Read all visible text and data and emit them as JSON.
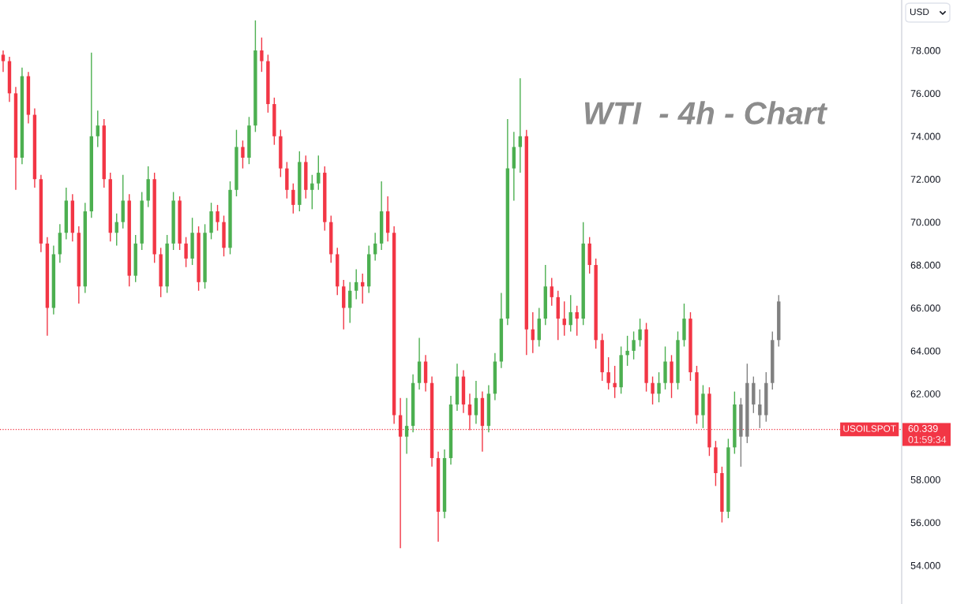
{
  "chart_data": {
    "type": "candlestick",
    "title": "WTI  - 4h - Chart",
    "ylabel": "USD",
    "categories": [
      null,
      null,
      null,
      null,
      null,
      null,
      null,
      null,
      null,
      null,
      null,
      null,
      null,
      null,
      null,
      null,
      null,
      null,
      null,
      null,
      null,
      null,
      null,
      null,
      null,
      null,
      null,
      null,
      null,
      null,
      null,
      null,
      null,
      null,
      null,
      null,
      null,
      null,
      null,
      null,
      null,
      null,
      null,
      null,
      null,
      null,
      null,
      null,
      null,
      null,
      null,
      null,
      null,
      null,
      null,
      null,
      null,
      null,
      null,
      null,
      null,
      null,
      null,
      null,
      null,
      null,
      null,
      null,
      null,
      null,
      null,
      null,
      null,
      null,
      null,
      null,
      null,
      null,
      null,
      null,
      null,
      null,
      null,
      null,
      null,
      null,
      null,
      null,
      null,
      null,
      null,
      null,
      null,
      null,
      null,
      null,
      null,
      null,
      null,
      null,
      null,
      null,
      null,
      null,
      null,
      null,
      null,
      null,
      null,
      null,
      null,
      null,
      null,
      null,
      null,
      null,
      null,
      null,
      null,
      null,
      null,
      null,
      null,
      null,
      null,
      null,
      null,
      null,
      null,
      null,
      null,
      null,
      null,
      null,
      null,
      null,
      null,
      null,
      null,
      null,
      null,
      null,
      null
    ],
    "ohlc": [
      [
        77.8,
        78.0,
        77.0,
        77.5
      ],
      [
        77.5,
        77.7,
        75.6,
        76.0
      ],
      [
        76.0,
        76.3,
        71.5,
        73.0
      ],
      [
        73.0,
        77.2,
        72.7,
        76.8
      ],
      [
        76.8,
        77.0,
        74.6,
        75.0
      ],
      [
        75.0,
        75.3,
        71.6,
        72.0
      ],
      [
        72.0,
        72.2,
        68.6,
        69.0
      ],
      [
        69.0,
        69.3,
        64.7,
        66.0
      ],
      [
        66.0,
        68.9,
        65.7,
        68.5
      ],
      [
        68.5,
        69.9,
        68.1,
        69.5
      ],
      [
        69.5,
        71.6,
        69.2,
        71.0
      ],
      [
        71.0,
        71.3,
        69.1,
        69.5
      ],
      [
        69.5,
        69.8,
        66.2,
        67.0
      ],
      [
        67.0,
        70.9,
        66.7,
        70.5
      ],
      [
        70.5,
        77.9,
        70.2,
        74.0
      ],
      [
        74.0,
        75.2,
        73.5,
        74.5
      ],
      [
        74.5,
        74.8,
        71.6,
        72.0
      ],
      [
        72.0,
        72.3,
        69.1,
        69.5
      ],
      [
        69.5,
        70.4,
        68.9,
        70.0
      ],
      [
        70.0,
        72.2,
        69.7,
        71.0
      ],
      [
        71.0,
        71.3,
        67.0,
        67.5
      ],
      [
        67.5,
        69.4,
        67.2,
        69.0
      ],
      [
        69.0,
        71.4,
        68.7,
        71.0
      ],
      [
        71.0,
        72.6,
        70.7,
        72.0
      ],
      [
        72.0,
        72.3,
        68.1,
        68.5
      ],
      [
        68.5,
        68.8,
        66.5,
        67.0
      ],
      [
        67.0,
        69.4,
        66.7,
        69.0
      ],
      [
        69.0,
        71.4,
        68.7,
        71.0
      ],
      [
        71.0,
        71.2,
        68.7,
        69.0
      ],
      [
        69.0,
        69.3,
        67.9,
        68.3
      ],
      [
        68.3,
        70.2,
        68.0,
        69.5
      ],
      [
        69.5,
        69.8,
        66.8,
        67.2
      ],
      [
        67.2,
        69.9,
        66.9,
        69.5
      ],
      [
        69.5,
        70.9,
        69.2,
        70.5
      ],
      [
        70.5,
        70.8,
        69.6,
        70.0
      ],
      [
        70.0,
        70.3,
        68.4,
        68.8
      ],
      [
        68.8,
        71.9,
        68.5,
        71.5
      ],
      [
        71.5,
        74.3,
        71.2,
        73.5
      ],
      [
        73.5,
        73.8,
        72.5,
        73.0
      ],
      [
        73.0,
        74.9,
        72.7,
        74.5
      ],
      [
        74.5,
        79.4,
        74.2,
        78.0
      ],
      [
        78.0,
        78.6,
        77.0,
        77.5
      ],
      [
        77.5,
        77.8,
        75.1,
        75.5
      ],
      [
        75.5,
        75.8,
        73.6,
        74.0
      ],
      [
        74.0,
        74.3,
        72.1,
        72.5
      ],
      [
        72.5,
        72.8,
        71.1,
        71.5
      ],
      [
        71.5,
        71.8,
        70.4,
        70.8
      ],
      [
        70.8,
        73.3,
        70.5,
        72.8
      ],
      [
        72.8,
        73.1,
        71.1,
        71.5
      ],
      [
        71.5,
        72.2,
        70.6,
        71.8
      ],
      [
        71.8,
        73.1,
        71.5,
        72.3
      ],
      [
        72.3,
        72.6,
        69.6,
        70.0
      ],
      [
        70.0,
        70.3,
        68.1,
        68.5
      ],
      [
        68.5,
        68.8,
        66.6,
        67.0
      ],
      [
        67.0,
        67.3,
        65.0,
        66.0
      ],
      [
        66.0,
        67.2,
        65.3,
        66.8
      ],
      [
        66.8,
        67.8,
        66.4,
        67.2
      ],
      [
        67.2,
        67.6,
        66.2,
        67.0
      ],
      [
        67.0,
        68.9,
        66.7,
        68.5
      ],
      [
        68.5,
        69.5,
        68.2,
        69.0
      ],
      [
        69.0,
        71.9,
        68.7,
        70.5
      ],
      [
        70.5,
        71.2,
        69.1,
        69.5
      ],
      [
        69.5,
        69.8,
        60.6,
        61.0
      ],
      [
        61.0,
        61.8,
        54.8,
        60.0
      ],
      [
        60.0,
        61.8,
        59.2,
        60.5
      ],
      [
        60.5,
        62.9,
        60.2,
        62.5
      ],
      [
        62.5,
        64.6,
        62.2,
        63.5
      ],
      [
        63.5,
        63.8,
        62.1,
        62.5
      ],
      [
        62.5,
        62.8,
        58.6,
        59.0
      ],
      [
        59.0,
        59.3,
        55.1,
        56.5
      ],
      [
        56.5,
        59.4,
        56.2,
        59.0
      ],
      [
        59.0,
        61.9,
        58.7,
        61.5
      ],
      [
        61.5,
        63.4,
        61.2,
        62.8
      ],
      [
        62.8,
        63.1,
        61.1,
        61.5
      ],
      [
        61.5,
        62.0,
        60.3,
        61.0
      ],
      [
        61.0,
        62.6,
        60.6,
        61.8
      ],
      [
        61.8,
        62.1,
        59.3,
        60.5
      ],
      [
        60.5,
        62.4,
        60.2,
        62.0
      ],
      [
        62.0,
        63.9,
        61.7,
        63.5
      ],
      [
        63.5,
        66.7,
        63.2,
        65.5
      ],
      [
        65.5,
        74.8,
        65.2,
        72.5
      ],
      [
        72.5,
        74.2,
        71.0,
        73.5
      ],
      [
        73.5,
        76.7,
        72.3,
        74.0
      ],
      [
        74.0,
        74.3,
        63.8,
        65.0
      ],
      [
        65.0,
        65.8,
        63.9,
        64.5
      ],
      [
        64.5,
        66.0,
        64.2,
        65.5
      ],
      [
        65.5,
        68.0,
        65.2,
        67.0
      ],
      [
        67.0,
        67.4,
        66.1,
        66.5
      ],
      [
        66.5,
        66.8,
        64.5,
        65.5
      ],
      [
        65.5,
        66.3,
        64.7,
        65.2
      ],
      [
        65.2,
        66.6,
        64.9,
        65.8
      ],
      [
        65.8,
        66.1,
        64.7,
        65.5
      ],
      [
        65.5,
        70.0,
        65.2,
        69.0
      ],
      [
        69.0,
        69.3,
        67.6,
        68.0
      ],
      [
        68.0,
        68.3,
        64.1,
        64.5
      ],
      [
        64.5,
        64.8,
        62.6,
        63.0
      ],
      [
        63.0,
        63.7,
        62.2,
        62.5
      ],
      [
        62.5,
        63.3,
        61.8,
        62.3
      ],
      [
        62.3,
        64.2,
        62.0,
        63.8
      ],
      [
        63.8,
        64.7,
        63.3,
        64.0
      ],
      [
        64.0,
        64.9,
        63.6,
        64.5
      ],
      [
        64.5,
        65.5,
        64.2,
        65.0
      ],
      [
        65.0,
        65.3,
        62.1,
        62.5
      ],
      [
        62.5,
        62.8,
        61.5,
        62.0
      ],
      [
        62.0,
        63.0,
        61.6,
        62.5
      ],
      [
        62.5,
        64.2,
        62.2,
        63.5
      ],
      [
        63.5,
        63.8,
        61.8,
        62.5
      ],
      [
        62.5,
        64.9,
        62.2,
        64.5
      ],
      [
        64.5,
        66.2,
        64.2,
        65.5
      ],
      [
        65.5,
        65.8,
        62.6,
        63.0
      ],
      [
        63.0,
        63.3,
        60.6,
        61.0
      ],
      [
        61.0,
        62.4,
        60.4,
        62.0
      ],
      [
        62.0,
        62.3,
        59.1,
        59.5
      ],
      [
        59.5,
        59.8,
        57.7,
        58.3
      ],
      [
        58.3,
        58.6,
        56.0,
        56.5
      ],
      [
        56.5,
        59.9,
        56.2,
        59.5
      ],
      [
        59.5,
        62.1,
        59.2,
        61.5
      ],
      [
        61.5,
        61.8,
        58.6,
        60.0
      ],
      [
        60.0,
        63.4,
        59.7,
        62.5
      ],
      [
        62.5,
        62.8,
        61.1,
        61.5
      ],
      [
        61.5,
        62.2,
        60.4,
        61.0
      ],
      [
        61.0,
        63.0,
        60.7,
        62.5
      ],
      [
        62.5,
        64.9,
        62.2,
        64.5
      ],
      [
        64.5,
        66.6,
        64.2,
        66.3
      ],
      null,
      null,
      null,
      null,
      null,
      null,
      null,
      null,
      null,
      null,
      null,
      null,
      null,
      null,
      null,
      null,
      null,
      null,
      null
    ],
    "colors": [
      "#f23645",
      "#f23645",
      "#f23645",
      "#4caf50",
      "#f23645",
      "#f23645",
      "#f23645",
      "#f23645",
      "#4caf50",
      "#4caf50",
      "#4caf50",
      "#f23645",
      "#f23645",
      "#4caf50",
      "#4caf50",
      "#4caf50",
      "#f23645",
      "#f23645",
      "#4caf50",
      "#4caf50",
      "#f23645",
      "#4caf50",
      "#4caf50",
      "#4caf50",
      "#f23645",
      "#f23645",
      "#4caf50",
      "#4caf50",
      "#f23645",
      "#f23645",
      "#4caf50",
      "#f23645",
      "#4caf50",
      "#4caf50",
      "#f23645",
      "#f23645",
      "#4caf50",
      "#4caf50",
      "#f23645",
      "#4caf50",
      "#4caf50",
      "#f23645",
      "#f23645",
      "#f23645",
      "#f23645",
      "#f23645",
      "#f23645",
      "#4caf50",
      "#f23645",
      "#4caf50",
      "#4caf50",
      "#f23645",
      "#f23645",
      "#f23645",
      "#f23645",
      "#4caf50",
      "#4caf50",
      "#f23645",
      "#4caf50",
      "#4caf50",
      "#4caf50",
      "#f23645",
      "#f23645",
      "#f23645",
      "#4caf50",
      "#4caf50",
      "#4caf50",
      "#f23645",
      "#f23645",
      "#f23645",
      "#4caf50",
      "#4caf50",
      "#4caf50",
      "#f23645",
      "#f23645",
      "#4caf50",
      "#f23645",
      "#4caf50",
      "#4caf50",
      "#4caf50",
      "#4caf50",
      "#4caf50",
      "#4caf50",
      "#f23645",
      "#f23645",
      "#4caf50",
      "#4caf50",
      "#f23645",
      "#f23645",
      "#f23645",
      "#4caf50",
      "#f23645",
      "#4caf50",
      "#f23645",
      "#f23645",
      "#f23645",
      "#f23645",
      "#f23645",
      "#4caf50",
      "#4caf50",
      "#4caf50",
      "#4caf50",
      "#f23645",
      "#f23645",
      "#4caf50",
      "#4caf50",
      "#f23645",
      "#4caf50",
      "#4caf50",
      "#f23645",
      "#f23645",
      "#4caf50",
      "#f23645",
      "#f23645",
      "#f23645",
      "#4caf50",
      "#4caf50",
      "#808080",
      "#808080",
      "#808080",
      "#808080",
      "#808080",
      "#808080",
      "#808080",
      null,
      null,
      null,
      null,
      null,
      null,
      null,
      null,
      null,
      null,
      null,
      null,
      null,
      null,
      null,
      null,
      null,
      null,
      null
    ],
    "ylim": [
      52.2,
      80.35
    ],
    "yticks": [
      {
        "value": 54,
        "label": "54.000"
      },
      {
        "value": 56,
        "label": "56.000"
      },
      {
        "value": 58,
        "label": "58.000"
      },
      {
        "value": 62,
        "label": "62.000"
      },
      {
        "value": 64,
        "label": "64.000"
      },
      {
        "value": 66,
        "label": "66.000"
      },
      {
        "value": 68,
        "label": "68.000"
      },
      {
        "value": 70,
        "label": "70.000"
      },
      {
        "value": 72,
        "label": "72.000"
      },
      {
        "value": 74,
        "label": "74.000"
      },
      {
        "value": 76,
        "label": "76.000"
      },
      {
        "value": 78,
        "label": "78.000"
      }
    ],
    "tick_labels": "y",
    "ref_lines": [
      {
        "axis": "y",
        "value": 60.339,
        "label": "USOILSPOT",
        "color": "#f23645",
        "line_style": "dotted"
      }
    ],
    "annotations": [
      "60.339",
      "01:59:34"
    ]
  }
}
